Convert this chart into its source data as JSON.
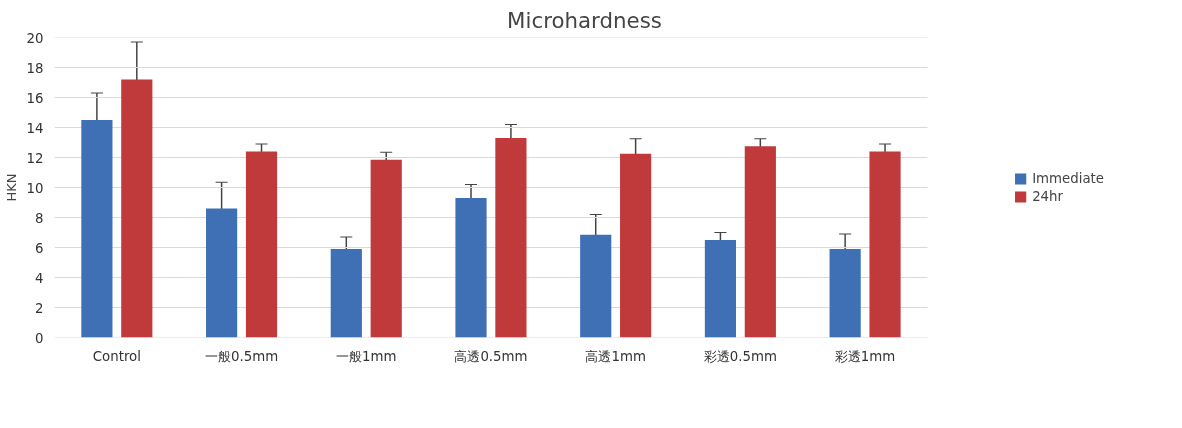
{
  "chart_data": {
    "type": "bar",
    "title": "Microhardness",
    "ylabel": "HKN",
    "categories": [
      "Control",
      "一般0.5mm",
      "一般1mm",
      "高透0.5mm",
      "高透1mm",
      "彩透0.5mm",
      "彩透1mm"
    ],
    "series": [
      {
        "name": "Immediate",
        "color": "#3f6fb5",
        "values": [
          14.5,
          8.6,
          5.9,
          9.3,
          6.85,
          6.5,
          5.9
        ],
        "errors": [
          1.8,
          1.75,
          0.8,
          0.9,
          1.35,
          0.5,
          1.0
        ]
      },
      {
        "name": "24hr",
        "color": "#c0393b",
        "values": [
          17.2,
          12.4,
          11.85,
          13.3,
          12.25,
          12.75,
          12.4
        ],
        "errors": [
          2.5,
          0.5,
          0.5,
          0.9,
          1.0,
          0.5,
          0.5
        ]
      }
    ],
    "ylim": [
      0,
      20
    ],
    "yticks": [
      0,
      2,
      4,
      6,
      8,
      10,
      12,
      14,
      16,
      18,
      20
    ],
    "grid": "y",
    "legend": "right"
  }
}
